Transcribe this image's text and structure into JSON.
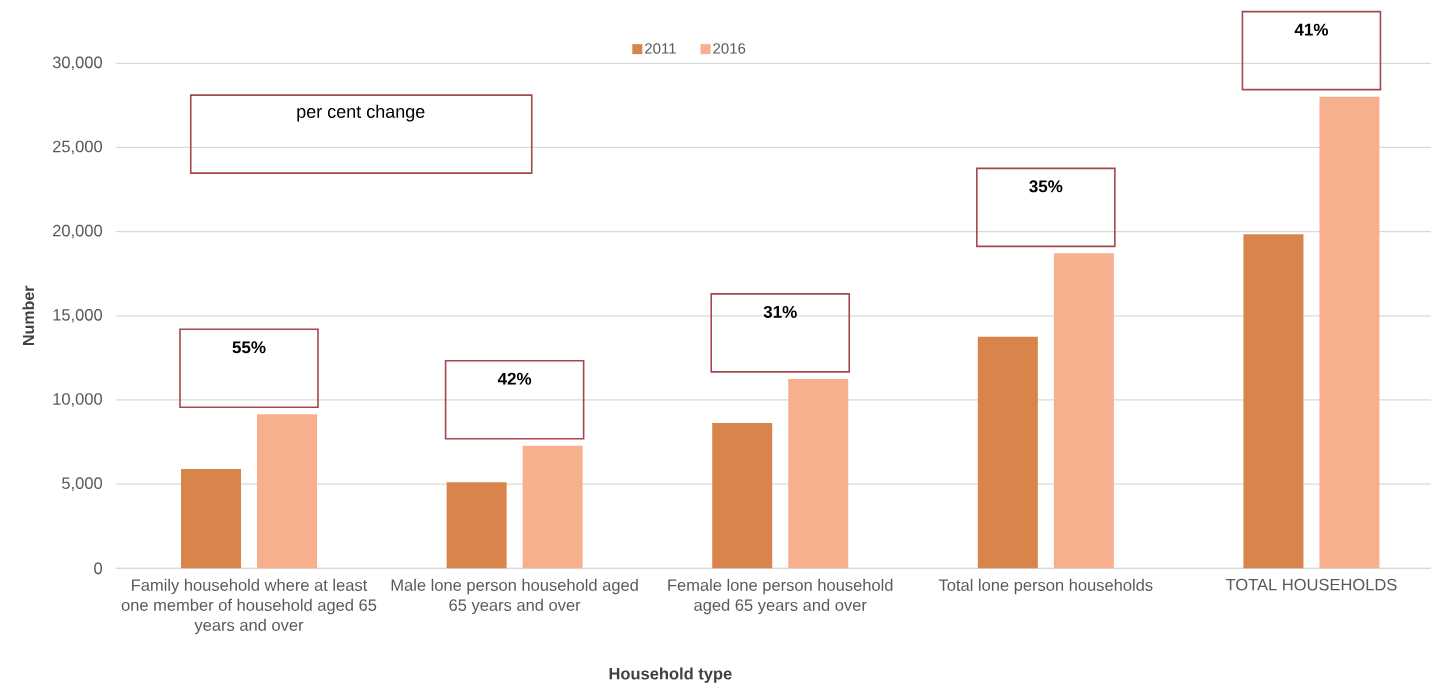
{
  "chart_data": {
    "type": "bar",
    "xlabel": "Household type",
    "ylabel": "Number",
    "categories": [
      "Family household where at least one member of household aged 65 years and over",
      "Male lone person household aged 65 years and over",
      "Female lone person household aged 65 years and over",
      "Total lone person households",
      "TOTAL HOUSEHOLDS"
    ],
    "series": [
      {
        "name": "2011",
        "color": "#d8844a",
        "values": [
          5900,
          5110,
          8630,
          13760,
          19840
        ]
      },
      {
        "name": "2016",
        "color": "#f6b08e",
        "values": [
          9150,
          7280,
          11250,
          18710,
          28020
        ]
      }
    ],
    "ylim": [
      0,
      30000
    ],
    "yticks": [
      0,
      {
        "value": 5000,
        "label": "5,000"
      },
      {
        "value": 10000,
        "label": "10,000"
      },
      {
        "value": 15000,
        "label": "15,000"
      },
      {
        "value": 20000,
        "label": "20,000"
      },
      {
        "value": 25000,
        "label": "25,000"
      },
      {
        "value": 30000,
        "label": "30,000"
      }
    ],
    "grid": "y",
    "legend": "top",
    "annotations": [
      "per cent change",
      "55%",
      "42%",
      "31%",
      "35%",
      "41%"
    ]
  }
}
